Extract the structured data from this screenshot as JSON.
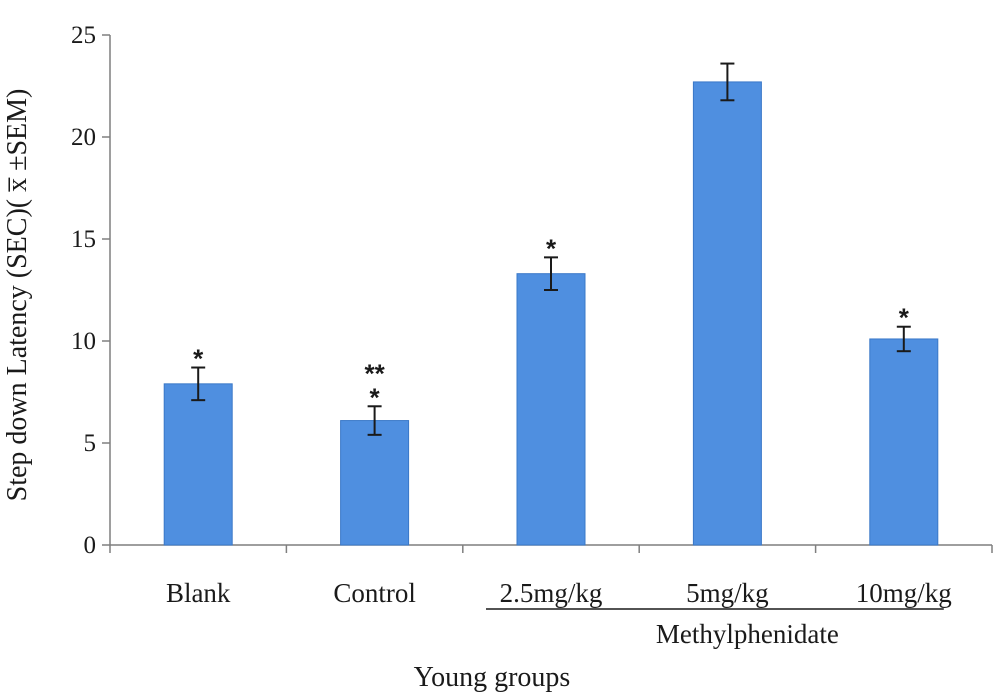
{
  "chart_data": {
    "type": "bar",
    "categories": [
      "Blank",
      "Control",
      "2.5mg/kg",
      "5mg/kg",
      "10mg/kg"
    ],
    "values": [
      7.9,
      6.1,
      13.3,
      22.7,
      10.1
    ],
    "errors": [
      0.8,
      0.7,
      0.8,
      0.9,
      0.6
    ],
    "annotations": [
      [
        "*"
      ],
      [
        "**",
        "*"
      ],
      [
        "*"
      ],
      [],
      [
        "*"
      ]
    ],
    "yticks": [
      "0",
      "5",
      "10",
      "15",
      "20",
      "25"
    ],
    "ylim": [
      0,
      25
    ],
    "ylabel": "Step down Latency (SEC)( x̅ ±SEM)",
    "xlabel": "Young groups",
    "group_label": "Methylphenidate",
    "group_categories": [
      "2.5mg/kg",
      "5mg/kg",
      "10mg/kg"
    ],
    "bar_color": "#4f8fe0",
    "bar_edge_color": "#3a78c8",
    "grid": false,
    "legend": "none"
  }
}
